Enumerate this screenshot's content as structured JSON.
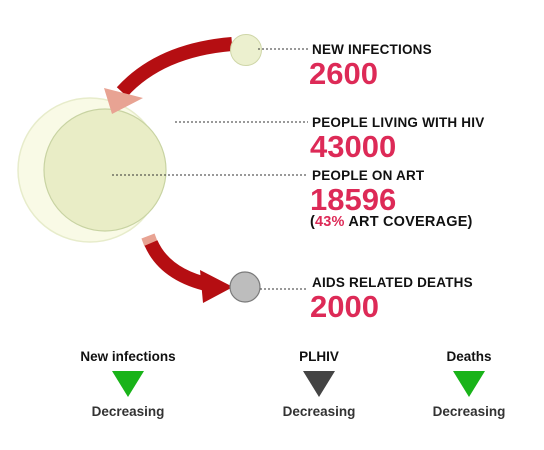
{
  "colors": {
    "arrow": "#b50e12",
    "number": "#dd2a57",
    "outer_circle_fill": "#f9fae6",
    "outer_circle_stroke": "#e7eccb",
    "inner_circle_fill": "#e9edc6",
    "inner_circle_stroke": "#c8d3a2",
    "new_infection_circle": "#ecf0cf",
    "deaths_circle": "#bdbdbd",
    "trend_down_good": "#19b319",
    "trend_down_neutral": "#444444"
  },
  "stats": {
    "new_infections": {
      "label": "NEW INFECTIONS",
      "value": "2600"
    },
    "plhiv": {
      "label": "PEOPLE LIVING WITH HIV",
      "value": "43000"
    },
    "on_art": {
      "label": "PEOPLE ON ART",
      "value": "18596",
      "coverage_open": "(",
      "coverage_pct": "43%",
      "coverage_text": " ART COVERAGE)"
    },
    "deaths": {
      "label": "AIDS RELATED DEATHS",
      "value": "2000"
    }
  },
  "trends": [
    {
      "title": "New infections",
      "status": "Decreasing",
      "icon": "triangle-down-green"
    },
    {
      "title": "PLHIV",
      "status": "Decreasing",
      "icon": "triangle-down-dark"
    },
    {
      "title": "Deaths",
      "status": "Decreasing",
      "icon": "triangle-down-green"
    }
  ]
}
